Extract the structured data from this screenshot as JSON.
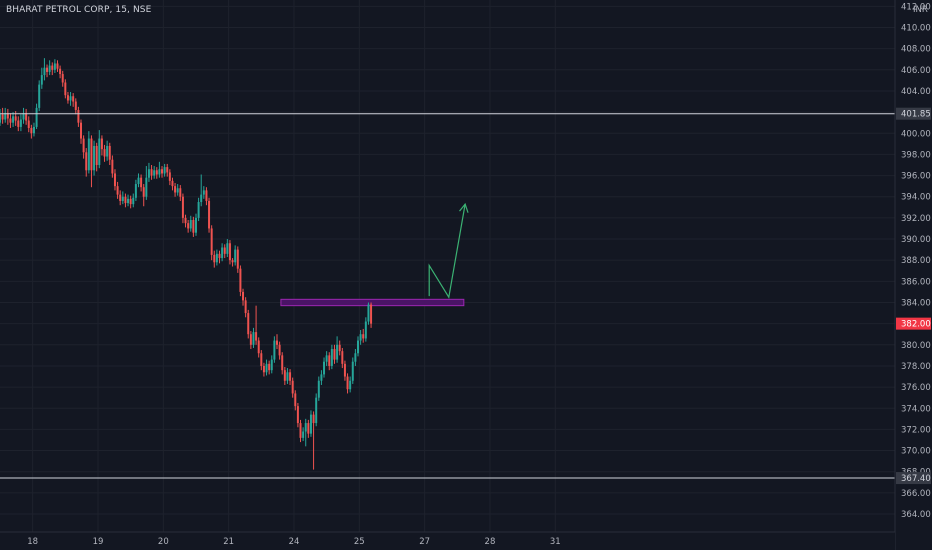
{
  "header": {
    "title": "BHARAT PETROL CORP, 15, NSE"
  },
  "colors": {
    "background": "#131722",
    "up": "#26a69a",
    "down": "#ef5350",
    "hline": "#d1d4dc",
    "zone_fill": "#4a1466",
    "zone_border": "#9c27b0",
    "arrow": "#3bb273",
    "price_label_bg": "#f23645"
  },
  "chart_data": {
    "type": "candlestick",
    "title": "BHARAT PETROL CORP, 15, NSE",
    "currency": "INR",
    "ylim": [
      362.3,
      412.6
    ],
    "y_ticks": [
      364,
      366,
      368,
      370,
      372,
      374,
      376,
      378,
      380,
      382,
      384,
      386,
      388,
      390,
      392,
      394,
      396,
      398,
      400,
      402,
      404,
      406,
      408,
      410,
      412
    ],
    "x_range": [
      17.5,
      31.2
    ],
    "x_ticks": [
      {
        "value": 18,
        "label": "18"
      },
      {
        "value": 19,
        "label": "19"
      },
      {
        "value": 20,
        "label": "20"
      },
      {
        "value": 21,
        "label": "21"
      },
      {
        "value": 22,
        "label": "24"
      },
      {
        "value": 23,
        "label": "25"
      },
      {
        "value": 24,
        "label": "27"
      },
      {
        "value": 25,
        "label": "28"
      },
      {
        "value": 26,
        "label": "31"
      }
    ],
    "horizontal_lines": [
      {
        "value": 401.85,
        "label": "401.85"
      },
      {
        "value": 367.4,
        "label": "367.40"
      }
    ],
    "current_price": {
      "value": 382.0,
      "label": "382.00"
    },
    "zone": {
      "y_low": 383.7,
      "y_high": 384.3,
      "x_start": 21.8,
      "x_end": 24.6
    },
    "arrow_path": [
      {
        "x": 24.07,
        "y": 384.6
      },
      {
        "x": 24.07,
        "y": 387.5
      },
      {
        "x": 24.37,
        "y": 384.5
      },
      {
        "x": 24.62,
        "y": 393.3
      }
    ],
    "candles_start_x": 17.42,
    "candles_step": 0.04,
    "candles": [
      [
        402.0,
        401.5,
        402.6,
        400.9
      ],
      [
        401.5,
        401.0,
        402.2,
        400.6
      ],
      [
        401.0,
        401.8,
        402.3,
        400.7
      ],
      [
        401.8,
        401.3,
        402.4,
        400.9
      ],
      [
        401.3,
        401.9,
        402.4,
        401.0
      ],
      [
        401.9,
        401.4,
        402.3,
        400.8
      ],
      [
        401.4,
        401.0,
        401.9,
        400.5
      ],
      [
        401.0,
        401.6,
        402.0,
        400.6
      ],
      [
        401.6,
        401.2,
        402.1,
        400.7
      ],
      [
        401.2,
        400.6,
        401.6,
        400.2
      ],
      [
        400.6,
        401.3,
        401.8,
        400.2
      ],
      [
        401.3,
        401.9,
        402.4,
        400.9
      ],
      [
        401.9,
        401.2,
        402.3,
        400.8
      ],
      [
        401.2,
        400.5,
        401.6,
        400.1
      ],
      [
        400.5,
        400.0,
        400.8,
        399.5
      ],
      [
        400.0,
        400.6,
        401.0,
        399.7
      ],
      [
        400.6,
        402.4,
        402.8,
        400.4
      ],
      [
        402.4,
        404.6,
        405.0,
        402.1
      ],
      [
        404.6,
        405.5,
        406.2,
        404.2
      ],
      [
        405.5,
        406.2,
        407.1,
        405.0
      ],
      [
        406.2,
        405.8,
        406.5,
        405.3
      ],
      [
        405.8,
        406.4,
        406.9,
        405.5
      ],
      [
        406.4,
        406.0,
        406.7,
        405.5
      ],
      [
        406.0,
        406.6,
        407.0,
        405.7
      ],
      [
        406.6,
        406.1,
        406.9,
        405.8
      ],
      [
        406.1,
        405.6,
        406.4,
        405.2
      ],
      [
        405.6,
        404.8,
        405.9,
        404.4
      ],
      [
        404.8,
        403.6,
        405.1,
        403.3
      ],
      [
        403.6,
        403.1,
        403.9,
        402.8
      ],
      [
        403.1,
        403.5,
        403.9,
        402.6
      ],
      [
        403.5,
        403.0,
        403.8,
        402.5
      ],
      [
        403.0,
        402.2,
        403.3,
        401.8
      ],
      [
        402.2,
        401.0,
        402.5,
        400.6
      ],
      [
        401.0,
        399.5,
        401.3,
        399.0
      ],
      [
        399.5,
        398.2,
        399.8,
        397.6
      ],
      [
        398.2,
        396.5,
        398.6,
        395.9
      ],
      [
        396.5,
        399.5,
        400.2,
        396.2
      ],
      [
        399.5,
        396.5,
        399.8,
        394.9
      ],
      [
        396.5,
        398.8,
        399.3,
        396.0
      ],
      [
        398.8,
        397.0,
        399.1,
        396.4
      ],
      [
        397.0,
        399.5,
        400.3,
        396.7
      ],
      [
        399.5,
        398.5,
        399.8,
        397.9
      ],
      [
        398.5,
        397.8,
        398.9,
        397.3
      ],
      [
        397.8,
        398.8,
        399.3,
        397.4
      ],
      [
        398.8,
        397.5,
        399.1,
        397.0
      ],
      [
        397.5,
        396.2,
        397.9,
        395.8
      ],
      [
        396.2,
        395.0,
        396.6,
        394.6
      ],
      [
        395.0,
        394.2,
        395.4,
        393.8
      ],
      [
        394.2,
        393.6,
        394.6,
        393.2
      ],
      [
        393.6,
        394.0,
        394.5,
        393.3
      ],
      [
        394.0,
        393.4,
        394.3,
        393.0
      ],
      [
        393.4,
        393.8,
        394.2,
        393.1
      ],
      [
        393.8,
        393.3,
        394.1,
        392.9
      ],
      [
        393.3,
        393.9,
        394.3,
        393.0
      ],
      [
        393.9,
        395.2,
        395.6,
        393.6
      ],
      [
        395.2,
        395.8,
        396.2,
        394.9
      ],
      [
        395.8,
        394.9,
        396.1,
        394.5
      ],
      [
        394.9,
        394.0,
        395.2,
        393.1
      ],
      [
        394.0,
        395.8,
        396.9,
        393.7
      ],
      [
        395.8,
        396.6,
        397.2,
        395.4
      ],
      [
        396.6,
        396.0,
        397.0,
        395.6
      ],
      [
        396.0,
        396.5,
        396.9,
        395.7
      ],
      [
        396.5,
        396.1,
        396.8,
        395.7
      ],
      [
        396.1,
        396.6,
        397.3,
        395.8
      ],
      [
        396.6,
        396.2,
        396.9,
        395.8
      ],
      [
        396.2,
        396.8,
        397.1,
        395.9
      ],
      [
        396.8,
        396.3,
        397.1,
        395.9
      ],
      [
        396.3,
        395.5,
        396.6,
        395.1
      ],
      [
        395.5,
        395.0,
        395.8,
        394.6
      ],
      [
        395.0,
        394.4,
        395.3,
        394.0
      ],
      [
        394.4,
        394.8,
        395.2,
        394.1
      ],
      [
        394.8,
        394.0,
        395.1,
        393.6
      ],
      [
        394.0,
        392.0,
        394.3,
        391.5
      ],
      [
        392.0,
        391.5,
        392.3,
        391.1
      ],
      [
        391.5,
        391.0,
        391.8,
        390.6
      ],
      [
        391.0,
        391.8,
        392.2,
        390.7
      ],
      [
        391.8,
        390.6,
        392.1,
        390.2
      ],
      [
        390.6,
        392.0,
        392.4,
        390.3
      ],
      [
        392.0,
        393.5,
        393.9,
        391.7
      ],
      [
        393.5,
        394.2,
        396.1,
        393.1
      ],
      [
        394.2,
        394.6,
        395.0,
        393.8
      ],
      [
        394.6,
        393.6,
        394.9,
        393.2
      ],
      [
        393.6,
        391.0,
        393.9,
        390.6
      ],
      [
        391.0,
        388.5,
        391.3,
        388.0
      ],
      [
        388.5,
        387.8,
        388.9,
        387.3
      ],
      [
        387.8,
        388.6,
        389.0,
        387.5
      ],
      [
        388.6,
        388.2,
        388.9,
        387.7
      ],
      [
        388.2,
        389.2,
        389.6,
        387.9
      ],
      [
        389.2,
        388.6,
        389.5,
        388.2
      ],
      [
        388.6,
        389.6,
        390.0,
        388.3
      ],
      [
        389.6,
        388.0,
        389.9,
        387.6
      ],
      [
        388.0,
        387.8,
        388.2,
        387.4
      ],
      [
        387.8,
        389.0,
        389.4,
        387.5
      ],
      [
        389.0,
        387.2,
        389.3,
        386.8
      ],
      [
        387.2,
        385.0,
        387.5,
        384.6
      ],
      [
        385.0,
        384.2,
        385.3,
        383.7
      ],
      [
        384.2,
        383.0,
        384.5,
        382.6
      ],
      [
        383.0,
        381.0,
        383.3,
        380.6
      ],
      [
        381.0,
        380.0,
        381.3,
        379.6
      ],
      [
        380.0,
        381.2,
        381.6,
        379.7
      ],
      [
        381.2,
        380.4,
        383.7,
        380.0
      ],
      [
        380.4,
        379.2,
        380.7,
        378.8
      ],
      [
        379.2,
        378.0,
        379.5,
        377.6
      ],
      [
        378.0,
        377.4,
        378.3,
        377.0
      ],
      [
        377.4,
        378.2,
        378.6,
        377.1
      ],
      [
        378.2,
        377.6,
        378.5,
        377.2
      ],
      [
        377.6,
        378.6,
        379.0,
        377.3
      ],
      [
        378.6,
        380.4,
        380.8,
        378.3
      ],
      [
        380.4,
        380.0,
        381.0,
        379.6
      ],
      [
        380.0,
        379.0,
        380.3,
        378.6
      ],
      [
        379.0,
        377.6,
        379.3,
        377.2
      ],
      [
        377.6,
        376.6,
        377.9,
        376.2
      ],
      [
        376.6,
        377.4,
        377.8,
        376.3
      ],
      [
        377.4,
        376.6,
        377.7,
        376.2
      ],
      [
        376.6,
        375.4,
        376.9,
        375.0
      ],
      [
        375.4,
        374.2,
        375.7,
        373.8
      ],
      [
        374.2,
        372.6,
        374.5,
        372.2
      ],
      [
        372.6,
        371.2,
        372.9,
        370.8
      ],
      [
        371.2,
        371.8,
        372.2,
        370.9
      ],
      [
        371.8,
        372.6,
        373.0,
        370.4
      ],
      [
        372.6,
        371.6,
        372.9,
        371.2
      ],
      [
        371.6,
        373.4,
        373.8,
        371.3
      ],
      [
        373.4,
        372.6,
        373.7,
        368.2
      ],
      [
        372.6,
        375.0,
        375.4,
        372.3
      ],
      [
        375.0,
        376.6,
        377.0,
        374.7
      ],
      [
        376.6,
        377.2,
        377.6,
        376.2
      ],
      [
        377.2,
        378.4,
        378.8,
        376.9
      ],
      [
        378.4,
        379.0,
        379.4,
        378.0
      ],
      [
        379.0,
        378.0,
        379.3,
        377.6
      ],
      [
        378.0,
        379.6,
        380.0,
        377.7
      ],
      [
        379.6,
        378.6,
        380.0,
        378.2
      ],
      [
        378.6,
        380.0,
        380.8,
        378.3
      ],
      [
        380.0,
        379.4,
        380.4,
        379.0
      ],
      [
        379.4,
        378.2,
        379.7,
        377.8
      ],
      [
        378.2,
        377.0,
        378.5,
        376.6
      ],
      [
        377.0,
        375.8,
        377.3,
        375.4
      ],
      [
        375.8,
        376.6,
        377.0,
        375.5
      ],
      [
        376.6,
        378.4,
        378.8,
        376.3
      ],
      [
        378.4,
        379.2,
        379.6,
        378.0
      ],
      [
        379.2,
        380.4,
        380.8,
        378.9
      ],
      [
        380.4,
        381.0,
        381.4,
        380.0
      ],
      [
        381.0,
        380.6,
        381.5,
        380.2
      ],
      [
        380.6,
        382.2,
        382.6,
        380.3
      ],
      [
        382.2,
        383.8,
        384.0,
        381.9
      ],
      [
        383.8,
        382.0,
        384.0,
        381.6
      ]
    ]
  }
}
